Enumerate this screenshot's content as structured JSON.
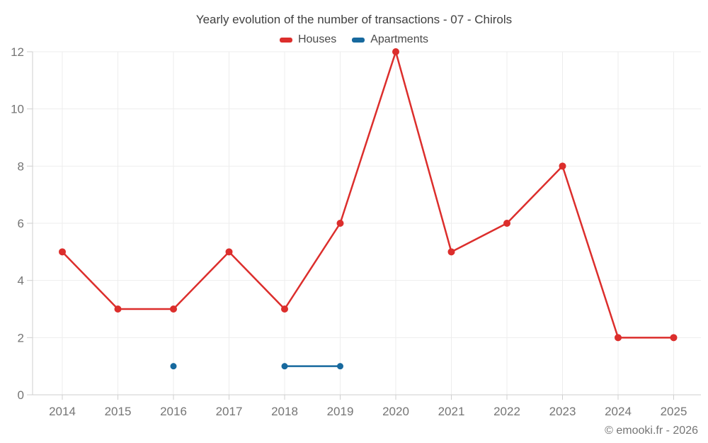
{
  "title": "Yearly evolution of the number of transactions - 07 - Chirols",
  "footer": {
    "credit": "© emooki.fr - 2026"
  },
  "legend": [
    {
      "label": "Houses",
      "color": "#dc2e2c"
    },
    {
      "label": "Apartments",
      "color": "#17699e"
    }
  ],
  "colors": {
    "grid": "#ededed",
    "axis": "#cfcfcf",
    "tick_label": "#757575",
    "houses": "#dc2e2c",
    "apartments": "#17699e"
  },
  "chart_data": {
    "type": "line",
    "title": "Yearly evolution of the number of transactions - 07 - Chirols",
    "x": [
      2014,
      2015,
      2016,
      2017,
      2018,
      2019,
      2020,
      2021,
      2022,
      2023,
      2024,
      2025
    ],
    "series": [
      {
        "name": "Houses",
        "color": "#dc2e2c",
        "values": [
          5,
          3,
          3,
          5,
          3,
          6,
          12,
          5,
          6,
          8,
          2,
          2
        ]
      },
      {
        "name": "Apartments",
        "color": "#17699e",
        "values": [
          null,
          null,
          1,
          null,
          1,
          1,
          null,
          null,
          null,
          null,
          null,
          null
        ]
      }
    ],
    "xlabel": "",
    "ylabel": "",
    "ylim": [
      0,
      12
    ],
    "yticks": [
      0,
      2,
      4,
      6,
      8,
      10,
      12
    ],
    "grid": true,
    "legend_position": "top"
  }
}
